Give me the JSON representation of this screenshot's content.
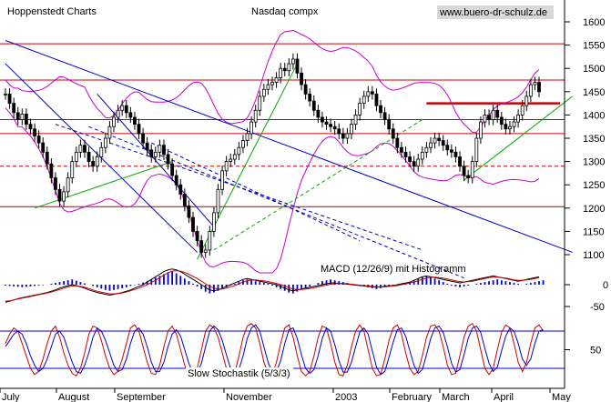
{
  "chart_data": [
    {
      "type": "line",
      "title": "Nasdaq compx",
      "source_label": "Hoppenstedt Charts",
      "website": "www.buero-dr-schulz.de",
      "x_ticks": [
        "July",
        "August",
        "September",
        "November",
        "2003",
        "February",
        "March",
        "April",
        "May"
      ],
      "ylim": [
        1040,
        1640
      ],
      "y_ticks": [
        1100,
        1150,
        1200,
        1250,
        1300,
        1350,
        1400,
        1450,
        1500,
        1550,
        1600
      ],
      "colors": {
        "price": "#000000",
        "bollinger": "#cc00cc",
        "support_resistance": "#cc0000",
        "trend_long": "#0000cc",
        "trend_short": "#00aa00",
        "projection": "#0000cc"
      },
      "horizontal_lines": [
        {
          "value": 1553,
          "style": "solid"
        },
        {
          "value": 1475,
          "style": "solid"
        },
        {
          "value": 1390,
          "style": "solid"
        },
        {
          "value": 1360,
          "style": "solid"
        },
        {
          "value": 1290,
          "style": "dashed"
        },
        {
          "value": 1203,
          "style": "solid"
        },
        {
          "value": 1425,
          "style": "thick-short",
          "from_index": 101
        }
      ],
      "close": [
        1445,
        1425,
        1405,
        1390,
        1402,
        1380,
        1370,
        1355,
        1340,
        1320,
        1295,
        1265,
        1240,
        1215,
        1235,
        1265,
        1300,
        1320,
        1335,
        1320,
        1300,
        1290,
        1310,
        1330,
        1350,
        1375,
        1395,
        1410,
        1420,
        1405,
        1395,
        1380,
        1360,
        1340,
        1325,
        1310,
        1320,
        1335,
        1315,
        1295,
        1270,
        1250,
        1230,
        1205,
        1180,
        1150,
        1130,
        1105,
        1110,
        1150,
        1190,
        1240,
        1280,
        1300,
        1305,
        1315,
        1330,
        1345,
        1360,
        1385,
        1410,
        1440,
        1455,
        1465,
        1470,
        1480,
        1500,
        1495,
        1510,
        1520,
        1490,
        1465,
        1445,
        1430,
        1410,
        1395,
        1385,
        1380,
        1375,
        1370,
        1360,
        1350,
        1360,
        1380,
        1400,
        1425,
        1440,
        1450,
        1445,
        1420,
        1405,
        1390,
        1370,
        1350,
        1330,
        1320,
        1310,
        1300,
        1290,
        1305,
        1320,
        1330,
        1340,
        1350,
        1345,
        1335,
        1325,
        1320,
        1310,
        1290,
        1270,
        1265,
        1300,
        1350,
        1385,
        1400,
        1390,
        1410,
        1395,
        1380,
        1370,
        1375,
        1385,
        1400,
        1420,
        1440,
        1465,
        1470,
        1450
      ],
      "trendlines": [
        {
          "color": "#0000cc",
          "style": "solid",
          "from": [
            0,
            1560
          ],
          "to": [
            136,
            1105
          ]
        },
        {
          "color": "#0000cc",
          "style": "solid",
          "from": [
            0,
            1510
          ],
          "to": [
            46,
            1105
          ]
        },
        {
          "color": "#0000cc",
          "style": "solid",
          "from": [
            22,
            1445
          ],
          "to": [
            50,
            1160
          ]
        },
        {
          "color": "#00aa00",
          "style": "solid",
          "from": [
            7,
            1200
          ],
          "to": [
            40,
            1300
          ]
        },
        {
          "color": "#00aa00",
          "style": "solid",
          "from": [
            46,
            1090
          ],
          "to": [
            70,
            1510
          ]
        },
        {
          "color": "#00aa00",
          "style": "dashed",
          "from": [
            50,
            1110
          ],
          "to": [
            100,
            1390
          ]
        },
        {
          "color": "#00aa00",
          "style": "solid",
          "from": [
            110,
            1260
          ],
          "to": [
            136,
            1440
          ]
        },
        {
          "color": "#0000cc",
          "style": "dashed",
          "from": [
            12,
            1380
          ],
          "to": [
            100,
            1110
          ]
        },
        {
          "color": "#0000cc",
          "style": "dashed",
          "from": [
            20,
            1375
          ],
          "to": [
            110,
            1050
          ]
        },
        {
          "color": "#0000cc",
          "style": "dashed",
          "from": [
            35,
            1340
          ],
          "to": [
            85,
            1130
          ]
        }
      ]
    },
    {
      "type": "bar",
      "title": "MACD (12/26/9) mit Histogramm",
      "y_ticks": [
        0,
        -50
      ],
      "colors": {
        "histogram": "#0000cc",
        "macd": "#000000",
        "signal": "#cc0000"
      },
      "histogram": [
        -2,
        -3,
        -4,
        -5,
        -6,
        -5,
        -4,
        -3,
        -2,
        -1,
        0,
        2,
        4,
        6,
        8,
        10,
        12,
        9,
        6,
        3,
        0,
        -3,
        -6,
        -9,
        -12,
        -14,
        -12,
        -10,
        -8,
        -6,
        -3,
        -1,
        2,
        5,
        8,
        12,
        16,
        20,
        24,
        28,
        30,
        26,
        20,
        14,
        8,
        2,
        -4,
        -10,
        -16,
        -20,
        -18,
        -14,
        -10,
        -6,
        -2,
        2,
        6,
        10,
        12,
        10,
        8,
        6,
        4,
        2,
        -2,
        -6,
        -10,
        -14,
        -18,
        -20,
        -16,
        -12,
        -8,
        -4,
        0,
        4,
        8,
        10,
        12,
        10,
        8,
        6,
        4,
        2,
        0,
        -2,
        -4,
        -6,
        -8,
        -10,
        -8,
        -6,
        -4,
        -2,
        0,
        2,
        4,
        6,
        10,
        14,
        18,
        20,
        18,
        14,
        10,
        6,
        2,
        -2,
        -4,
        -6,
        -4,
        -2,
        0,
        2,
        4,
        6,
        8,
        10,
        12,
        10,
        8,
        6,
        4,
        2,
        0,
        2,
        4,
        6,
        8,
        10
      ],
      "macd": [
        -40,
        -38,
        -35,
        -32,
        -30,
        -28,
        -26,
        -24,
        -22,
        -20,
        -18,
        -15,
        -12,
        -8,
        -5,
        -2,
        0,
        -2,
        -5,
        -8,
        -12,
        -15,
        -18,
        -20,
        -22,
        -24,
        -22,
        -20,
        -18,
        -15,
        -12,
        -8,
        -4,
        0,
        6,
        12,
        18,
        24,
        30,
        34,
        36,
        34,
        30,
        24,
        18,
        12,
        6,
        0,
        -6,
        -12,
        -14,
        -12,
        -8,
        -4,
        0,
        4,
        8,
        12,
        14,
        12,
        10,
        8,
        6,
        4,
        2,
        0,
        -4,
        -8,
        -12,
        -14,
        -12,
        -10,
        -8,
        -6,
        -4,
        -2,
        0,
        2,
        4,
        4,
        3,
        2,
        1,
        0,
        -1,
        -2,
        -3,
        -4,
        -5,
        -6,
        -5,
        -4,
        -3,
        -2,
        0,
        2,
        4,
        6,
        10,
        14,
        18,
        20,
        18,
        16,
        14,
        12,
        10,
        8,
        6,
        4,
        6,
        8,
        10,
        12,
        14,
        16,
        18,
        20,
        18,
        16,
        14,
        12,
        10,
        8,
        10,
        12,
        14,
        16,
        18
      ],
      "signal": [
        -38,
        -37,
        -35,
        -33,
        -31,
        -29,
        -27,
        -25,
        -23,
        -21,
        -19,
        -17,
        -14,
        -11,
        -8,
        -5,
        -3,
        -3,
        -4,
        -6,
        -9,
        -12,
        -15,
        -17,
        -19,
        -21,
        -21,
        -20,
        -19,
        -17,
        -14,
        -11,
        -8,
        -4,
        0,
        5,
        10,
        16,
        22,
        27,
        31,
        32,
        31,
        28,
        24,
        19,
        14,
        8,
        2,
        -4,
        -8,
        -10,
        -10,
        -8,
        -5,
        -2,
        2,
        6,
        9,
        11,
        11,
        10,
        9,
        7,
        5,
        3,
        0,
        -3,
        -7,
        -10,
        -11,
        -11,
        -10,
        -9,
        -7,
        -5,
        -3,
        -1,
        1,
        2,
        3,
        3,
        2,
        1,
        0,
        -1,
        -2,
        -3,
        -4,
        -5,
        -5,
        -5,
        -4,
        -3,
        -2,
        0,
        2,
        4,
        6,
        9,
        12,
        15,
        17,
        17,
        16,
        15,
        13,
        11,
        9,
        7,
        6,
        7,
        8,
        10,
        12,
        14,
        16,
        17,
        17,
        16,
        15,
        13,
        11,
        10,
        10,
        11,
        12,
        14,
        16
      ]
    },
    {
      "type": "line",
      "title": "Slow Stochastik (5/3/3)",
      "ylim": [
        0,
        100
      ],
      "y_ticks": [
        50
      ],
      "levels": [
        80,
        20
      ],
      "colors": {
        "k": "#cc0000",
        "d": "#0000cc",
        "levels": "#0000cc"
      },
      "k": [
        60,
        75,
        85,
        80,
        60,
        40,
        20,
        10,
        15,
        35,
        60,
        80,
        88,
        70,
        45,
        25,
        12,
        8,
        20,
        45,
        75,
        88,
        85,
        65,
        40,
        20,
        10,
        15,
        35,
        60,
        85,
        90,
        80,
        55,
        30,
        12,
        10,
        25,
        55,
        80,
        88,
        75,
        50,
        25,
        10,
        8,
        20,
        50,
        80,
        90,
        85,
        70,
        45,
        20,
        8,
        12,
        40,
        70,
        88,
        92,
        85,
        60,
        30,
        12,
        10,
        30,
        60,
        85,
        90,
        70,
        40,
        15,
        8,
        15,
        40,
        70,
        88,
        85,
        60,
        30,
        10,
        8,
        25,
        55,
        80,
        90,
        80,
        50,
        20,
        8,
        10,
        35,
        65,
        85,
        90,
        75,
        45,
        20,
        10,
        15,
        40,
        70,
        88,
        90,
        80,
        55,
        25,
        10,
        12,
        40,
        70,
        88,
        92,
        80,
        50,
        20,
        10,
        20,
        50,
        78,
        90,
        85,
        60,
        30,
        15,
        30,
        60,
        85,
        90,
        80
      ],
      "d": [
        55,
        65,
        75,
        80,
        75,
        60,
        40,
        25,
        15,
        20,
        35,
        55,
        75,
        80,
        70,
        50,
        30,
        15,
        12,
        25,
        45,
        70,
        85,
        80,
        65,
        45,
        25,
        15,
        18,
        35,
        60,
        80,
        85,
        75,
        55,
        30,
        15,
        15,
        30,
        55,
        75,
        82,
        72,
        50,
        28,
        12,
        12,
        28,
        55,
        80,
        88,
        82,
        65,
        42,
        20,
        10,
        18,
        40,
        68,
        85,
        90,
        80,
        55,
        30,
        14,
        15,
        32,
        60,
        82,
        85,
        68,
        42,
        20,
        12,
        18,
        40,
        68,
        85,
        80,
        58,
        32,
        14,
        14,
        30,
        55,
        78,
        85,
        75,
        48,
        22,
        10,
        15,
        38,
        62,
        82,
        85,
        72,
        48,
        25,
        12,
        18,
        42,
        68,
        85,
        88,
        78,
        55,
        28,
        14,
        18,
        42,
        68,
        85,
        88,
        78,
        52,
        28,
        15,
        22,
        48,
        72,
        85,
        80,
        60,
        35,
        25,
        35,
        60,
        80,
        82
      ]
    }
  ]
}
